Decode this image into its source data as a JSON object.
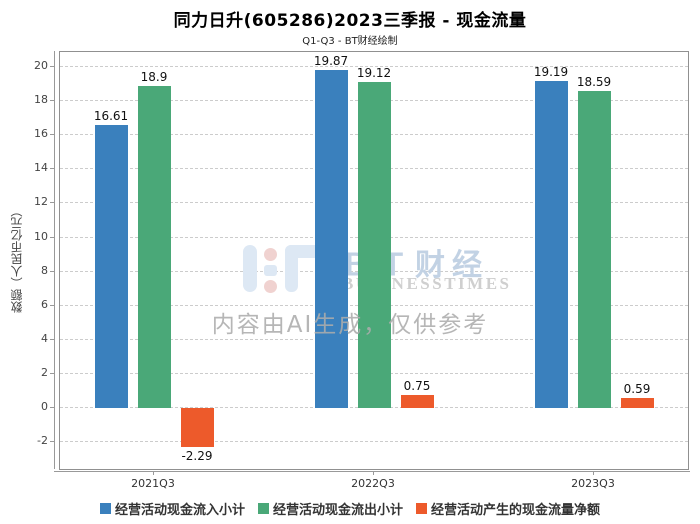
{
  "title": "同力日升(605286)2023三季报 - 现金流量",
  "subtitle": "Q1-Q3 - BT财经绘制",
  "watermark": {
    "logo_text": "ＢＴ财经",
    "logo_sub": "BUSINESSTIMES",
    "disclaimer": "内容由AI生成，仅供参考"
  },
  "chart_data": {
    "type": "bar",
    "categories": [
      "2021Q3",
      "2022Q3",
      "2023Q3"
    ],
    "series": [
      {
        "name": "经营活动现金流入小计",
        "color": "#3a80bd",
        "values": [
          16.61,
          19.87,
          19.19
        ],
        "labels": [
          "16.61",
          "19.87",
          "19.19"
        ]
      },
      {
        "name": "经营活动现金流出小计",
        "color": "#4aa878",
        "values": [
          18.9,
          19.12,
          18.59
        ],
        "labels": [
          "18.9",
          "19.12",
          "18.59"
        ]
      },
      {
        "name": "经营活动产生的现金流量净额",
        "color": "#ed5a2b",
        "values": [
          -2.29,
          0.75,
          0.59
        ],
        "labels": [
          "-2.29",
          "0.75",
          "0.59"
        ]
      }
    ],
    "ylabel": "数额（人民币亿元）",
    "yticks": [
      -2,
      0,
      2,
      4,
      6,
      8,
      10,
      12,
      14,
      16,
      18,
      20
    ],
    "ylim": [
      -3.6,
      20.9
    ],
    "grid": "dashed-horizontal",
    "legend_position": "bottom"
  }
}
